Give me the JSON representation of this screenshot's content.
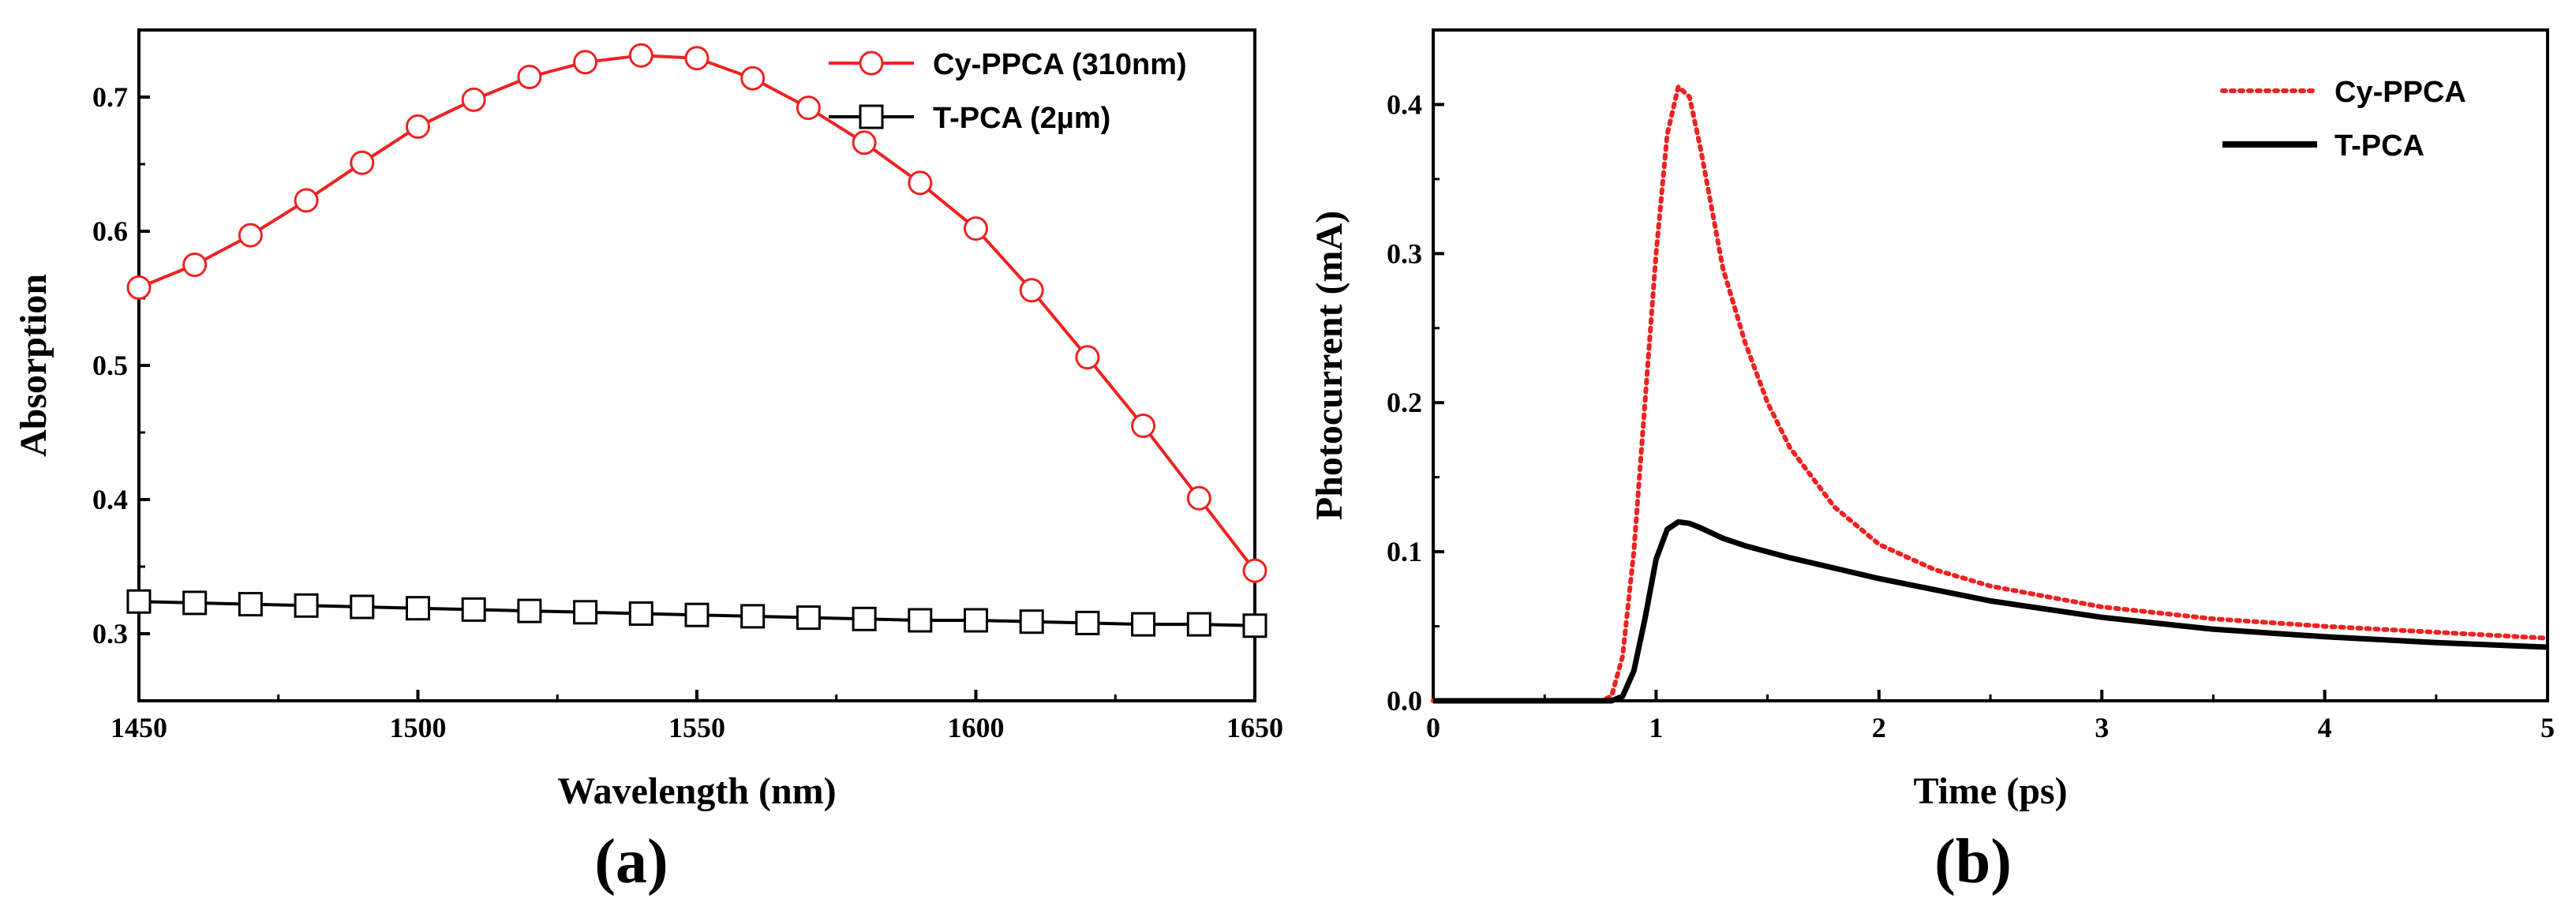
{
  "colors": {
    "red": "#ee2222",
    "black": "#000000"
  },
  "chart_data": [
    {
      "panel": "(a)",
      "type": "line",
      "title": "",
      "xlabel": "Wavelength (nm)",
      "ylabel": "Absorption",
      "xlim": [
        1450,
        1650
      ],
      "ylim": [
        0.25,
        0.75
      ],
      "xticks": [
        1450,
        1500,
        1550,
        1600,
        1650
      ],
      "xtick_labels": [
        "1450",
        "1500",
        "1550",
        "1600",
        "1650"
      ],
      "yticks": [
        0.3,
        0.4,
        0.5,
        0.6,
        0.7
      ],
      "ytick_labels": [
        "0.3",
        "0.4",
        "0.5",
        "0.6",
        "0.7"
      ],
      "legend_position": "top-right",
      "x": [
        1450,
        1460,
        1470,
        1480,
        1490,
        1500,
        1510,
        1520,
        1530,
        1540,
        1550,
        1560,
        1570,
        1580,
        1590,
        1600,
        1610,
        1620,
        1630,
        1640,
        1650
      ],
      "series": [
        {
          "name": "Cy-PPCA (310nm)",
          "color": "#ee2222",
          "marker": "circle",
          "values": [
            0.558,
            0.575,
            0.597,
            0.623,
            0.651,
            0.678,
            0.698,
            0.715,
            0.726,
            0.731,
            0.729,
            0.714,
            0.692,
            0.666,
            0.636,
            0.602,
            0.556,
            0.506,
            0.455,
            0.401,
            0.347
          ]
        },
        {
          "name": "T-PCA (2µm)",
          "color": "#000000",
          "marker": "square",
          "values": [
            0.324,
            0.323,
            0.322,
            0.321,
            0.32,
            0.319,
            0.318,
            0.317,
            0.316,
            0.315,
            0.314,
            0.313,
            0.312,
            0.311,
            0.31,
            0.31,
            0.309,
            0.308,
            0.307,
            0.307,
            0.306
          ]
        }
      ]
    },
    {
      "panel": "(b)",
      "type": "line",
      "title": "",
      "xlabel": "Time (ps)",
      "ylabel": "Photocurrent (mA)",
      "xlim": [
        0,
        5
      ],
      "ylim": [
        0,
        0.45
      ],
      "xticks": [
        0,
        1,
        2,
        3,
        4,
        5
      ],
      "xtick_labels": [
        "0",
        "1",
        "2",
        "3",
        "4",
        "5"
      ],
      "yticks": [
        0.0,
        0.1,
        0.2,
        0.3,
        0.4
      ],
      "ytick_labels": [
        "0.0",
        "0.1",
        "0.2",
        "0.3",
        "0.4"
      ],
      "legend_position": "top-right",
      "series": [
        {
          "name": "Cy-PPCA",
          "color": "#ee2222",
          "style": "dotted",
          "x": [
            0,
            0.5,
            0.75,
            0.8,
            0.85,
            0.9,
            0.95,
            1.0,
            1.05,
            1.1,
            1.15,
            1.2,
            1.25,
            1.3,
            1.4,
            1.5,
            1.6,
            1.8,
            2.0,
            2.25,
            2.5,
            3.0,
            3.5,
            4.0,
            4.5,
            5.0
          ],
          "y": [
            0,
            0,
            0,
            0.003,
            0.03,
            0.1,
            0.2,
            0.3,
            0.38,
            0.412,
            0.405,
            0.37,
            0.33,
            0.29,
            0.24,
            0.2,
            0.17,
            0.13,
            0.105,
            0.088,
            0.077,
            0.063,
            0.055,
            0.05,
            0.046,
            0.042
          ]
        },
        {
          "name": "T-PCA",
          "color": "#000000",
          "style": "solid",
          "x": [
            0,
            0.5,
            0.8,
            0.85,
            0.9,
            0.95,
            1.0,
            1.05,
            1.1,
            1.15,
            1.2,
            1.3,
            1.4,
            1.6,
            1.8,
            2.0,
            2.5,
            3.0,
            3.5,
            4.0,
            4.5,
            5.0
          ],
          "y": [
            0,
            0,
            0,
            0.003,
            0.02,
            0.055,
            0.095,
            0.115,
            0.12,
            0.119,
            0.116,
            0.109,
            0.104,
            0.096,
            0.089,
            0.082,
            0.067,
            0.056,
            0.048,
            0.043,
            0.039,
            0.036
          ]
        }
      ]
    }
  ]
}
